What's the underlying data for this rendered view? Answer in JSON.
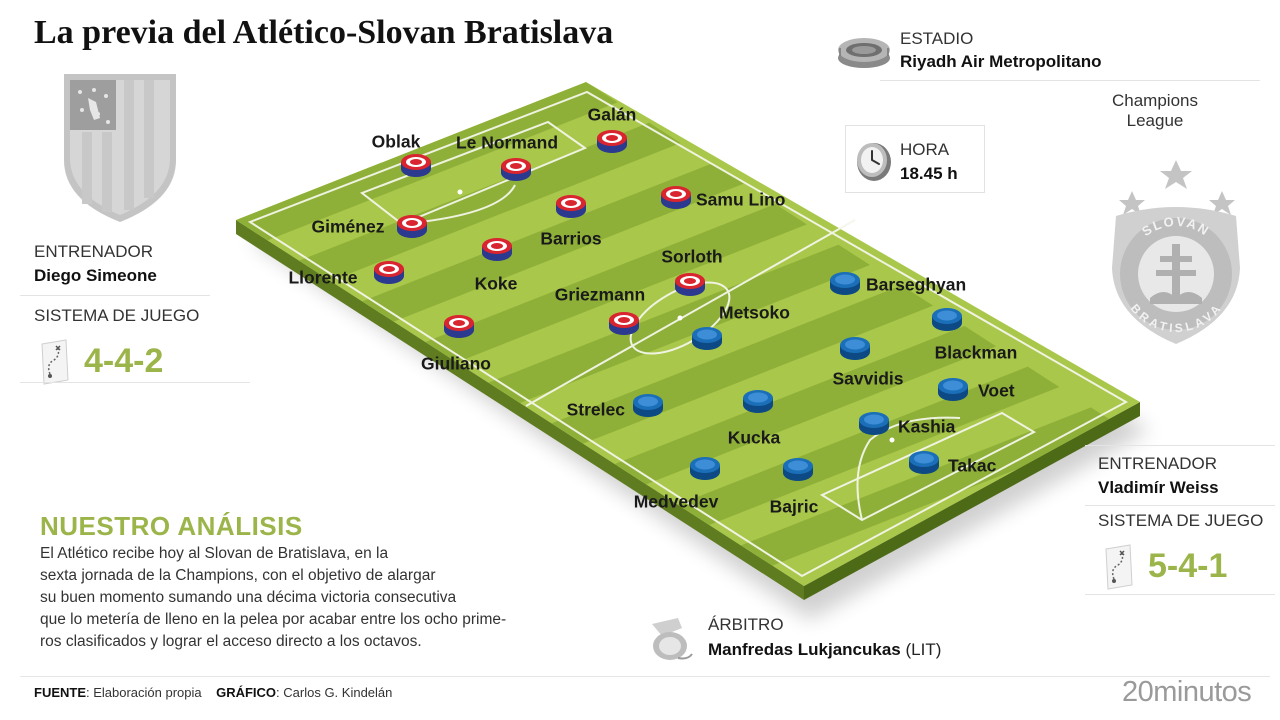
{
  "title": "La previa del Atlético-Slovan Bratislava",
  "stadium": {
    "label": "ESTADIO",
    "value": "Riyadh Air Metropolitano"
  },
  "competition": {
    "line1": "Champions",
    "line2": "League"
  },
  "time": {
    "label": "HORA",
    "value": "18.45 h"
  },
  "home": {
    "coach_label": "ENTRENADOR",
    "coach": "Diego Simeone",
    "system_label": "SISTEMA DE JUEGO",
    "system": "4-4-2",
    "players": [
      "Oblak",
      "Le Normand",
      "Galán",
      "Giménez",
      "Barrios",
      "Samu Lino",
      "Llorente",
      "Koke",
      "Sorloth",
      "Griezmann",
      "Giuliano"
    ],
    "colors": {
      "primary": "#d8252f",
      "secondary": "#2b3a8f"
    }
  },
  "away": {
    "coach_label": "ENTRENADOR",
    "coach": "Vladimír Weiss",
    "system_label": "SISTEMA DE JUEGO",
    "system": "5-4-1",
    "players": [
      "Barseghyan",
      "Metsoko",
      "Blackman",
      "Savvidis",
      "Voet",
      "Strelec",
      "Kucka",
      "Kashia",
      "Takac",
      "Medvedev",
      "Bajric"
    ],
    "colors": {
      "primary": "#1b6fb8",
      "secondary": "#0d4a85"
    },
    "crest_top": "SLOVAN",
    "crest_bottom": "BRATISLAVA"
  },
  "referee": {
    "label": "ÁRBITRO",
    "name": "Manfredas Lukjancukas",
    "country": "(LIT)"
  },
  "analysis": {
    "heading": "NUESTRO ANÁLISIS",
    "lines": [
      "El Atlético recibe hoy al Slovan de Bratislava, en la",
      "sexta jornada de la Champions, con el objetivo de alargar",
      "su buen momento sumando una décima victoria consecutiva",
      "que lo metería de lleno en la pelea por acabar entre los ocho prime-",
      "ros clasificados y lograr el acceso directo a los octavos."
    ]
  },
  "footer": {
    "source_label": "FUENTE",
    "source": ": Elaboración propia",
    "graphic_label": "GRÁFICO",
    "graphic": ": Carlos G. Kindelán"
  },
  "brand": "20minutos",
  "palette": {
    "pitch_light": "#a9c74a",
    "pitch_dark": "#8fb038",
    "pitch_side": "#5f7d20",
    "accent": "#9cb54b",
    "crest_grey": "#bdbdbd"
  }
}
